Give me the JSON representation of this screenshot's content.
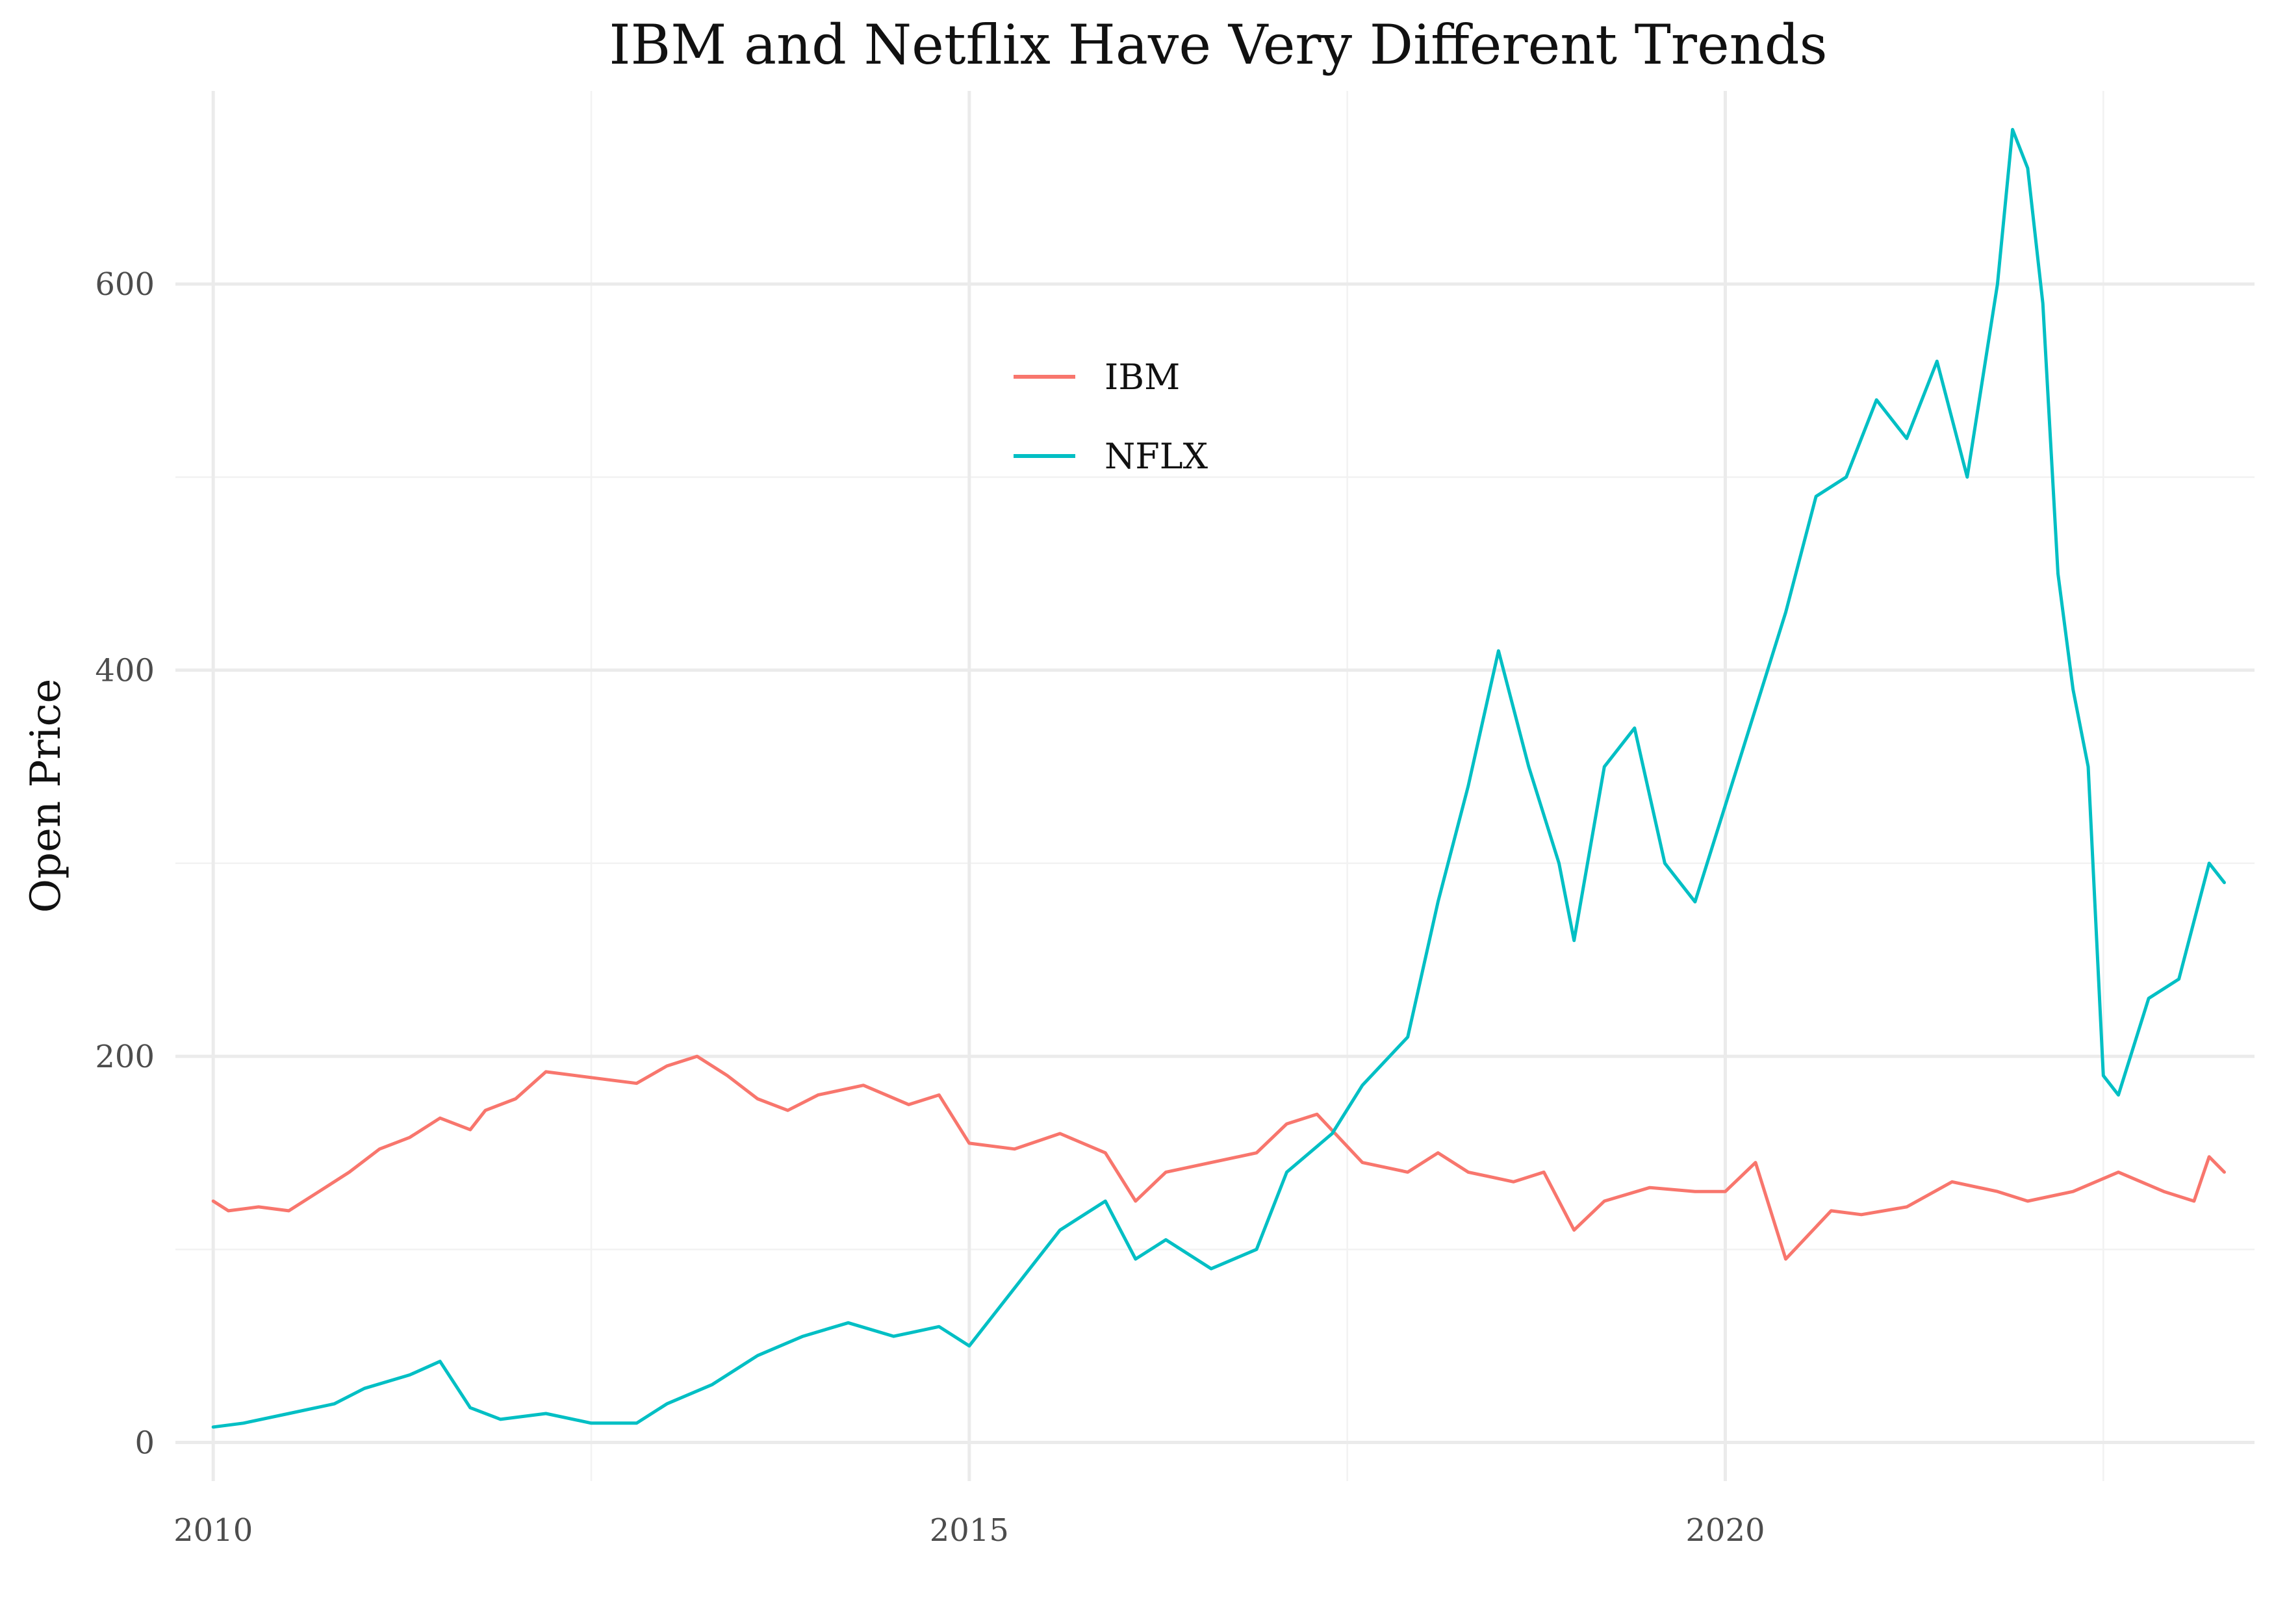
{
  "chart_data": {
    "type": "line",
    "title": "IBM and Netflix Have Very Different Trends",
    "xlabel": "",
    "ylabel": "Open Price",
    "xlim": [
      2009.75,
      2023.5
    ],
    "ylim": [
      -20,
      700
    ],
    "x_ticks": [
      2010,
      2015,
      2020
    ],
    "x_tick_labels": [
      "2010",
      "2015",
      "2020"
    ],
    "x_minor": [
      2012.5,
      2017.5,
      2022.5
    ],
    "y_ticks": [
      0,
      200,
      400,
      600
    ],
    "y_tick_labels": [
      "0",
      "200",
      "400",
      "600"
    ],
    "y_minor": [
      100,
      300,
      500
    ],
    "grid": true,
    "legend_position": "inside-top-center",
    "series": [
      {
        "name": "IBM",
        "color": "#F8766D",
        "x": [
          2010.0,
          2010.1,
          2010.3,
          2010.5,
          2010.7,
          2010.9,
          2011.1,
          2011.3,
          2011.5,
          2011.7,
          2011.8,
          2012.0,
          2012.2,
          2012.4,
          2012.6,
          2012.8,
          2013.0,
          2013.2,
          2013.4,
          2013.6,
          2013.8,
          2014.0,
          2014.3,
          2014.6,
          2014.8,
          2015.0,
          2015.3,
          2015.6,
          2015.9,
          2016.1,
          2016.3,
          2016.6,
          2016.9,
          2017.1,
          2017.3,
          2017.6,
          2017.9,
          2018.1,
          2018.3,
          2018.6,
          2018.8,
          2019.0,
          2019.2,
          2019.5,
          2019.8,
          2020.0,
          2020.2,
          2020.4,
          2020.7,
          2020.9,
          2021.2,
          2021.5,
          2021.8,
          2022.0,
          2022.3,
          2022.6,
          2022.9,
          2023.1,
          2023.2,
          2023.3
        ],
        "values": [
          125,
          120,
          122,
          120,
          130,
          140,
          152,
          158,
          168,
          162,
          172,
          178,
          192,
          190,
          188,
          186,
          195,
          200,
          190,
          178,
          172,
          180,
          185,
          175,
          180,
          155,
          152,
          160,
          150,
          125,
          140,
          145,
          150,
          165,
          170,
          145,
          140,
          150,
          140,
          135,
          140,
          110,
          125,
          132,
          130,
          130,
          145,
          95,
          120,
          118,
          122,
          135,
          130,
          125,
          130,
          140,
          130,
          125,
          148,
          140
        ]
      },
      {
        "name": "NFLX",
        "color": "#00BFC4",
        "x": [
          2010.0,
          2010.2,
          2010.5,
          2010.8,
          2011.0,
          2011.3,
          2011.5,
          2011.7,
          2011.9,
          2012.2,
          2012.5,
          2012.8,
          2013.0,
          2013.3,
          2013.6,
          2013.9,
          2014.2,
          2014.5,
          2014.8,
          2015.0,
          2015.3,
          2015.6,
          2015.9,
          2016.1,
          2016.3,
          2016.6,
          2016.9,
          2017.1,
          2017.4,
          2017.6,
          2017.9,
          2018.1,
          2018.3,
          2018.5,
          2018.7,
          2018.9,
          2019.0,
          2019.2,
          2019.4,
          2019.6,
          2019.8,
          2020.0,
          2020.2,
          2020.4,
          2020.6,
          2020.8,
          2021.0,
          2021.2,
          2021.4,
          2021.6,
          2021.8,
          2021.9,
          2022.0,
          2022.1,
          2022.2,
          2022.3,
          2022.4,
          2022.5,
          2022.6,
          2022.8,
          2023.0,
          2023.2,
          2023.3
        ],
        "values": [
          8,
          10,
          15,
          20,
          28,
          35,
          42,
          18,
          12,
          15,
          10,
          10,
          20,
          30,
          45,
          55,
          62,
          55,
          60,
          50,
          80,
          110,
          125,
          95,
          105,
          90,
          100,
          140,
          160,
          185,
          210,
          280,
          340,
          410,
          350,
          300,
          260,
          350,
          370,
          300,
          280,
          330,
          380,
          430,
          490,
          500,
          540,
          520,
          560,
          500,
          600,
          680,
          660,
          590,
          450,
          390,
          350,
          190,
          180,
          230,
          240,
          300,
          290
        ]
      }
    ]
  }
}
